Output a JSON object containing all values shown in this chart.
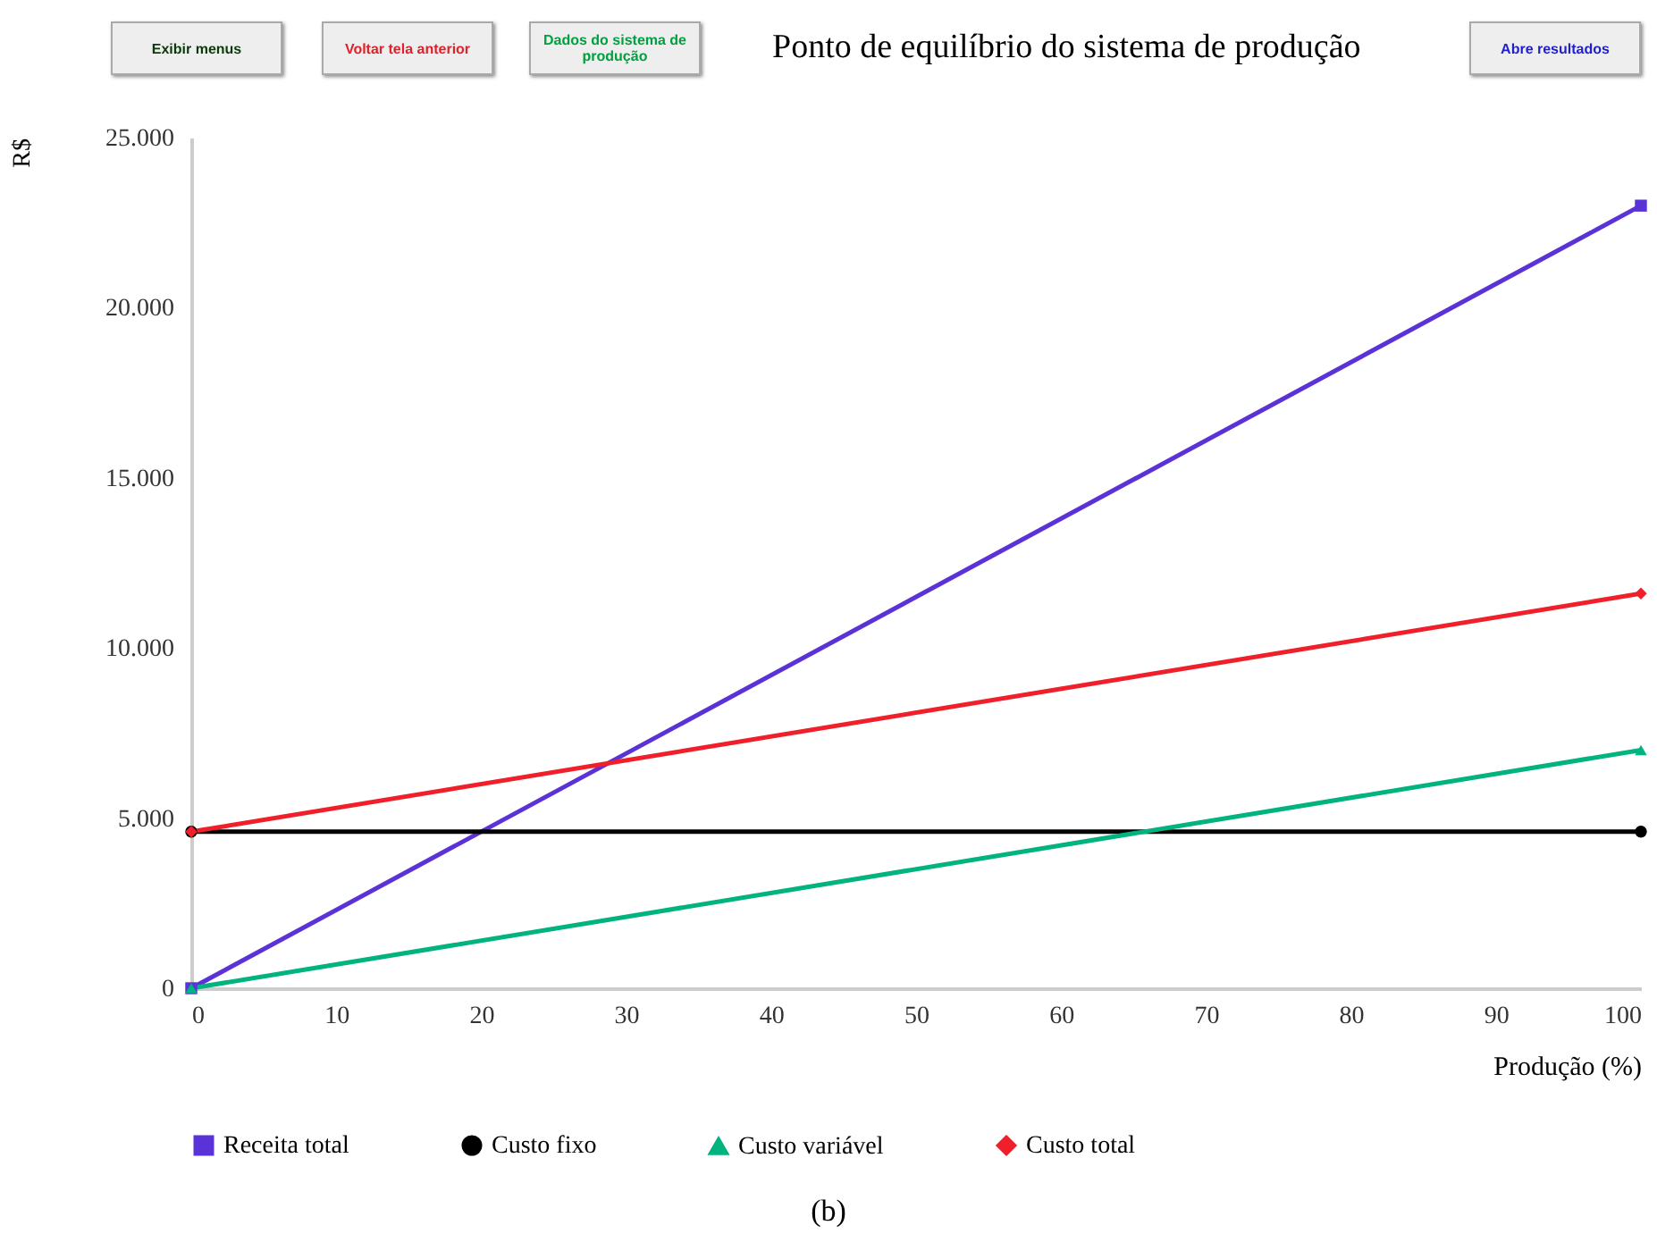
{
  "chart_data": {
    "type": "line",
    "title": "Ponto de equilíbrio do sistema de produção",
    "xlabel": "Produção (%)",
    "ylabel": "R$",
    "x": [
      0,
      100
    ],
    "series": [
      {
        "name": "Receita total",
        "color": "#5a32d8",
        "values": [
          0,
          23000
        ],
        "marker": "square"
      },
      {
        "name": "Custo fixo",
        "color": "#000000",
        "values": [
          4600,
          4600
        ],
        "marker": "circle"
      },
      {
        "name": "Custo variável",
        "color": "#00b37f",
        "values": [
          0,
          7000
        ],
        "marker": "triangle"
      },
      {
        "name": "Custo total",
        "color": "#f0202a",
        "values": [
          4600,
          11600
        ],
        "marker": "diamond"
      }
    ],
    "xlim": [
      0,
      100
    ],
    "xticks": [
      0,
      10,
      20,
      30,
      40,
      50,
      60,
      70,
      80,
      90,
      100
    ],
    "ylim": [
      0,
      25000
    ],
    "yticks": [
      0,
      {
        "value": 5000,
        "label": "5.000"
      },
      {
        "value": 10000,
        "label": "10.000"
      },
      {
        "value": 15000,
        "label": "15.000"
      },
      {
        "value": 20000,
        "label": "20.000"
      },
      {
        "value": 25000,
        "label": "25.000"
      }
    ],
    "grid": false,
    "legend": "bottom",
    "line_style": "solid",
    "annotations": [
      "Exibir menus",
      "Voltar tela anterior",
      "Dados do sistema de produção",
      "Abre resultados",
      "(b)"
    ]
  }
}
